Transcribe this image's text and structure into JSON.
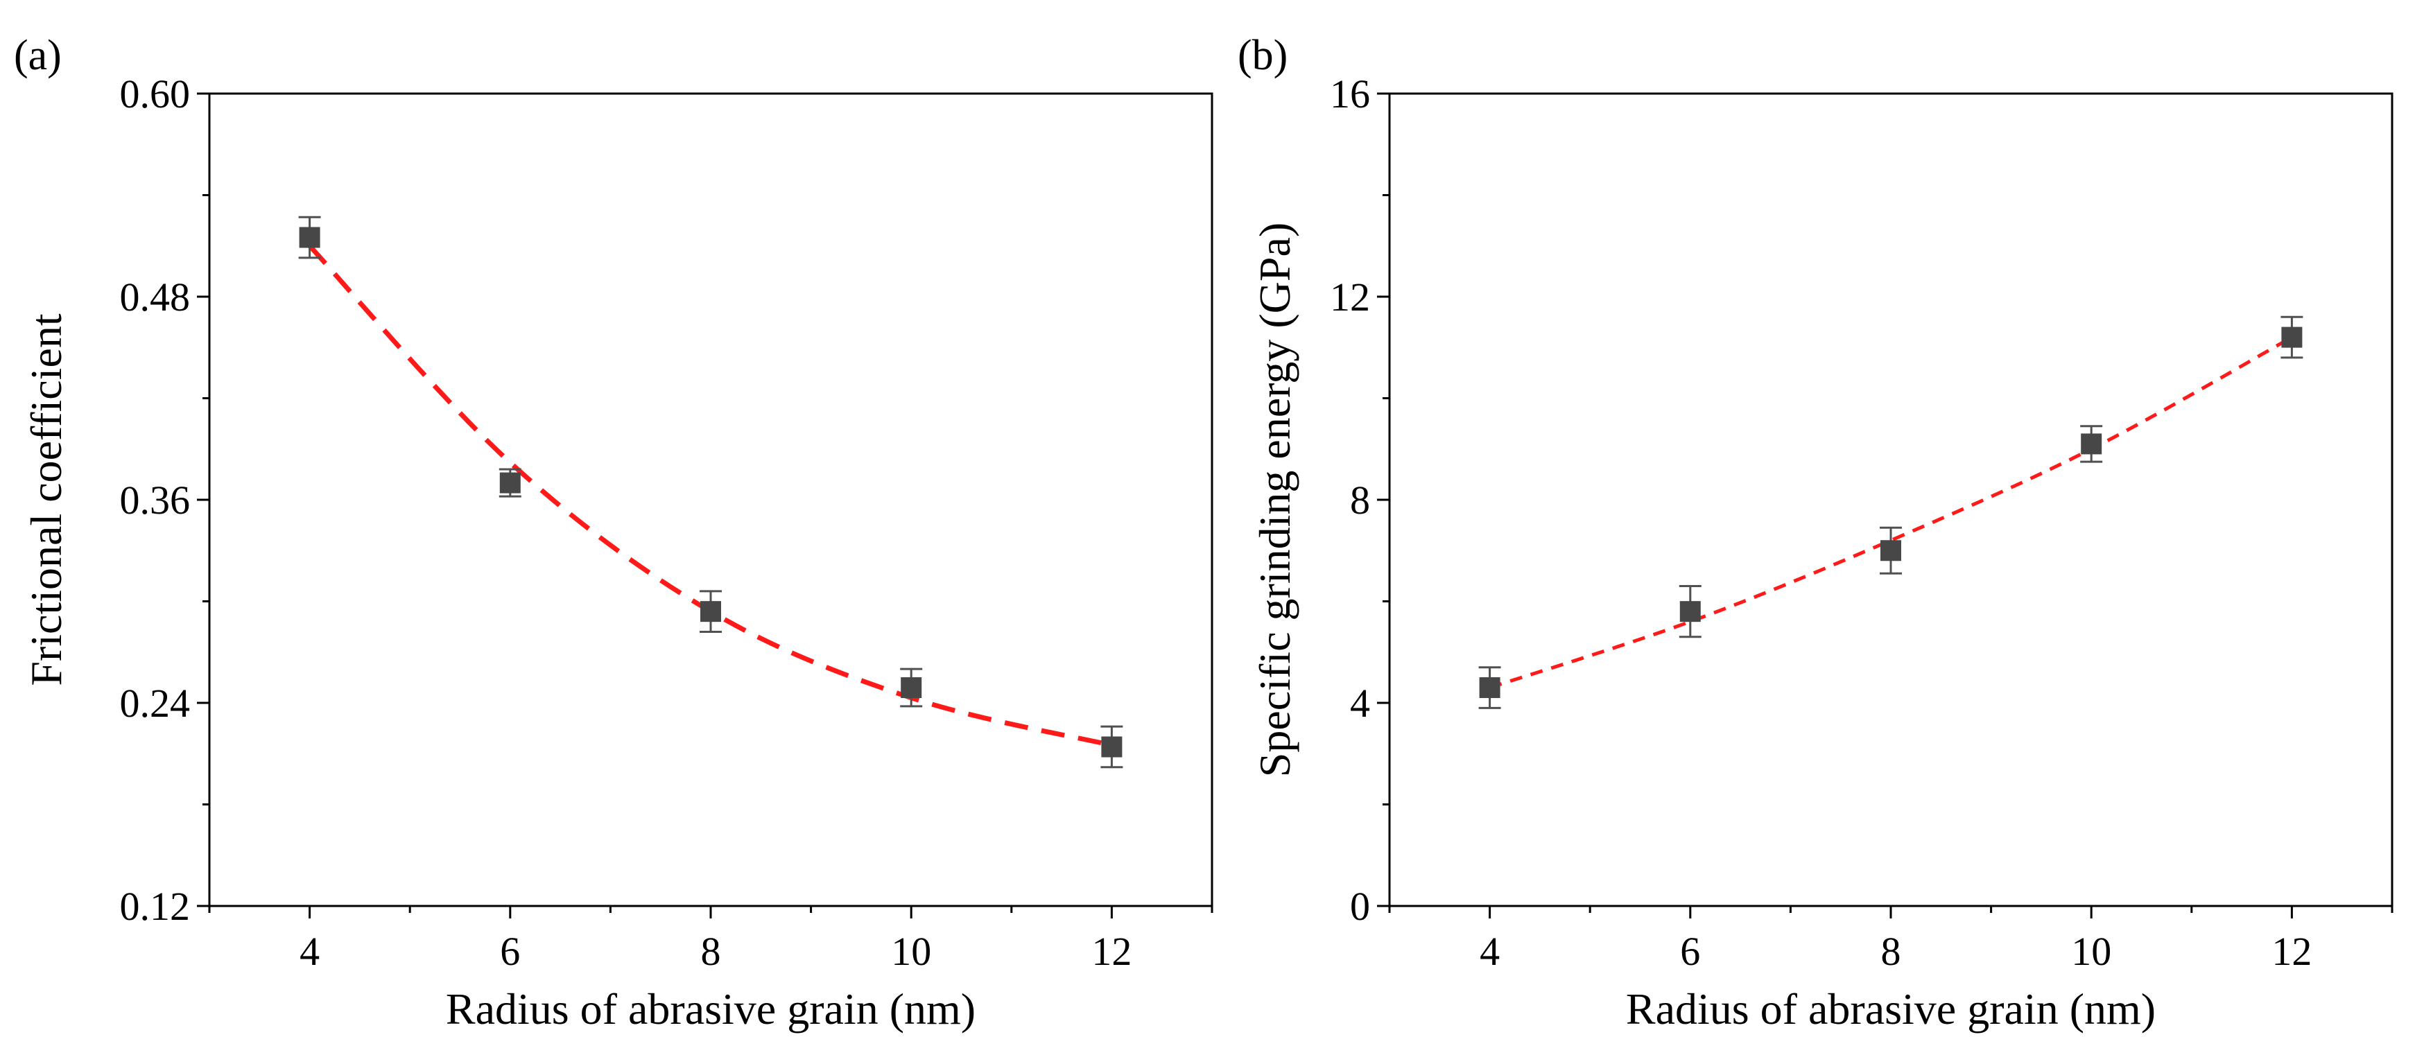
{
  "figure": {
    "panels": [
      "(a)",
      "(b)"
    ]
  },
  "colors": {
    "marker": "#474747",
    "errorbar": "#505050",
    "fit": "#ff1a1a",
    "axis": "#000000"
  },
  "chart_data": [
    {
      "panel": "(a)",
      "type": "scatter",
      "title": "",
      "xlabel": "Radius of abrasive grain (nm)",
      "ylabel": "Frictional coefficient",
      "xlim": [
        3,
        13
      ],
      "ylim": [
        0.12,
        0.6
      ],
      "xticks": [
        4,
        6,
        8,
        10,
        12
      ],
      "xtick_labels": [
        "4",
        "6",
        "8",
        "10",
        "12"
      ],
      "yticks": [
        0.12,
        0.24,
        0.36,
        0.48,
        0.6
      ],
      "ytick_labels": [
        "0.12",
        "0.24",
        "0.36",
        "0.48",
        "0.60"
      ],
      "grid": false,
      "series": [
        {
          "name": "data",
          "x": [
            4,
            6,
            8,
            10,
            12
          ],
          "y": [
            0.515,
            0.37,
            0.294,
            0.249,
            0.214
          ],
          "yerr": [
            0.012,
            0.008,
            0.012,
            0.011,
            0.012
          ],
          "marker": "square"
        },
        {
          "name": "fit",
          "style": "dashed",
          "x": [
            4,
            6,
            8,
            10,
            12
          ],
          "y": [
            0.51,
            0.382,
            0.294,
            0.243,
            0.215
          ]
        }
      ]
    },
    {
      "panel": "(b)",
      "type": "scatter",
      "title": "",
      "xlabel": "Radius of abrasive grain (nm)",
      "ylabel": "Specific grinding energy (GPa)",
      "xlim": [
        3,
        13
      ],
      "ylim": [
        0,
        16
      ],
      "xticks": [
        4,
        6,
        8,
        10,
        12
      ],
      "xtick_labels": [
        "4",
        "6",
        "8",
        "10",
        "12"
      ],
      "yticks": [
        0,
        4,
        8,
        12,
        16
      ],
      "ytick_labels": [
        "0",
        "4",
        "8",
        "12",
        "16"
      ],
      "grid": false,
      "series": [
        {
          "name": "data",
          "x": [
            4,
            6,
            8,
            10,
            12
          ],
          "y": [
            4.3,
            5.8,
            7.0,
            9.1,
            11.2
          ],
          "yerr": [
            0.4,
            0.5,
            0.45,
            0.35,
            0.4
          ],
          "marker": "square"
        },
        {
          "name": "fit",
          "style": "dashed",
          "x": [
            4,
            6,
            8,
            10,
            12
          ],
          "y": [
            4.3,
            5.6,
            7.2,
            9.0,
            11.2
          ]
        }
      ]
    }
  ]
}
